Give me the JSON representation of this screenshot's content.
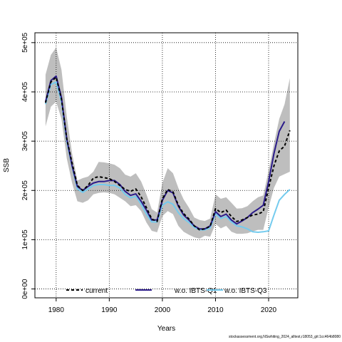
{
  "chart_data": {
    "type": "line",
    "xlabel": "Years",
    "ylabel": "SSB",
    "xlim": [
      1976,
      2025.5
    ],
    "ylim": [
      -18000,
      520000
    ],
    "x_ticks": [
      1980,
      1990,
      2000,
      2010,
      2020
    ],
    "x_tick_labels": [
      "1980",
      "1990",
      "2000",
      "2010",
      "2020"
    ],
    "y_ticks": [
      0,
      100000,
      200000,
      300000,
      400000,
      500000
    ],
    "y_tick_labels": [
      "0e+00",
      "1e+05",
      "2e+05",
      "3e+05",
      "4e+05",
      "5e+05"
    ],
    "grid": true,
    "legend_position": "bottom",
    "years": [
      1978,
      1979,
      1980,
      1981,
      1982,
      1983,
      1984,
      1985,
      1986,
      1987,
      1988,
      1989,
      1990,
      1991,
      1992,
      1993,
      1994,
      1995,
      1996,
      1997,
      1998,
      1999,
      2000,
      2001,
      2002,
      2003,
      2004,
      2005,
      2006,
      2007,
      2008,
      2009,
      2010,
      2011,
      2012,
      2013,
      2014,
      2015,
      2016,
      2017,
      2018,
      2019,
      2020,
      2021,
      2022,
      2023,
      2024
    ],
    "band": {
      "color": "#bebebe",
      "upper": [
        435000,
        475000,
        490000,
        445000,
        350000,
        275000,
        220000,
        225000,
        228000,
        238000,
        258000,
        257000,
        255000,
        252000,
        245000,
        232000,
        228000,
        235000,
        218000,
        192000,
        162000,
        155000,
        215000,
        245000,
        235000,
        205000,
        182000,
        165000,
        145000,
        140000,
        138000,
        143000,
        192000,
        183000,
        186000,
        175000,
        163000,
        164000,
        168000,
        178000,
        186000,
        190000,
        240000,
        295000,
        345000,
        375000,
        428000
      ],
      "lower": [
        330000,
        370000,
        380000,
        345000,
        265000,
        215000,
        178000,
        175000,
        180000,
        192000,
        195000,
        196000,
        195000,
        192000,
        185000,
        178000,
        168000,
        170000,
        158000,
        135000,
        118000,
        115000,
        148000,
        158000,
        152000,
        128000,
        116000,
        110000,
        105000,
        102000,
        108000,
        106000,
        132000,
        123000,
        128000,
        116000,
        112000,
        112000,
        113000,
        117000,
        120000,
        120000,
        165000,
        205000,
        228000,
        233000,
        238000
      ]
    },
    "series": [
      {
        "name": "current",
        "color": "#000000",
        "dashed": true,
        "values": [
          378000,
          420000,
          430000,
          385000,
          305000,
          255000,
          210000,
          200000,
          210000,
          225000,
          228000,
          226000,
          224000,
          218000,
          210000,
          202000,
          198000,
          203000,
          187000,
          165000,
          142000,
          137000,
          183000,
          202000,
          197000,
          170000,
          153000,
          142000,
          128000,
          120000,
          122000,
          127000,
          163000,
          155000,
          160000,
          147000,
          137000,
          140000,
          145000,
          150000,
          152000,
          157000,
          205000,
          250000,
          280000,
          290000,
          322000
        ]
      },
      {
        "name": "w.o. IBTS-Q1",
        "color": "#2b1b8a",
        "dashed": false,
        "values": [
          380000,
          423000,
          432000,
          388000,
          305000,
          250000,
          208000,
          200000,
          208000,
          215000,
          218000,
          218000,
          220000,
          220000,
          212000,
          198000,
          190000,
          193000,
          178000,
          160000,
          140000,
          140000,
          180000,
          200000,
          195000,
          168000,
          150000,
          140000,
          128000,
          122000,
          122000,
          128000,
          157000,
          147000,
          152000,
          140000,
          132000,
          138000,
          145000,
          155000,
          162000,
          170000,
          218000,
          275000,
          320000,
          340000,
          null
        ]
      },
      {
        "name": "w.o. IBTS-Q3",
        "color": "#74cbee",
        "dashed": false,
        "values": [
          375000,
          415000,
          420000,
          380000,
          300000,
          248000,
          203000,
          196000,
          203000,
          210000,
          212000,
          212000,
          210000,
          210000,
          205000,
          192000,
          185000,
          188000,
          172000,
          152000,
          136000,
          136000,
          170000,
          177000,
          172000,
          155000,
          143000,
          135000,
          125000,
          120000,
          120000,
          124000,
          153000,
          143000,
          147000,
          136000,
          128000,
          126000,
          122000,
          116000,
          115000,
          116000,
          118000,
          150000,
          180000,
          192000,
          202000
        ]
      }
    ]
  },
  "footer_note": "stockassessment.org,NSwhiting_2024_alltest,r18053_git:1cc464b8080"
}
